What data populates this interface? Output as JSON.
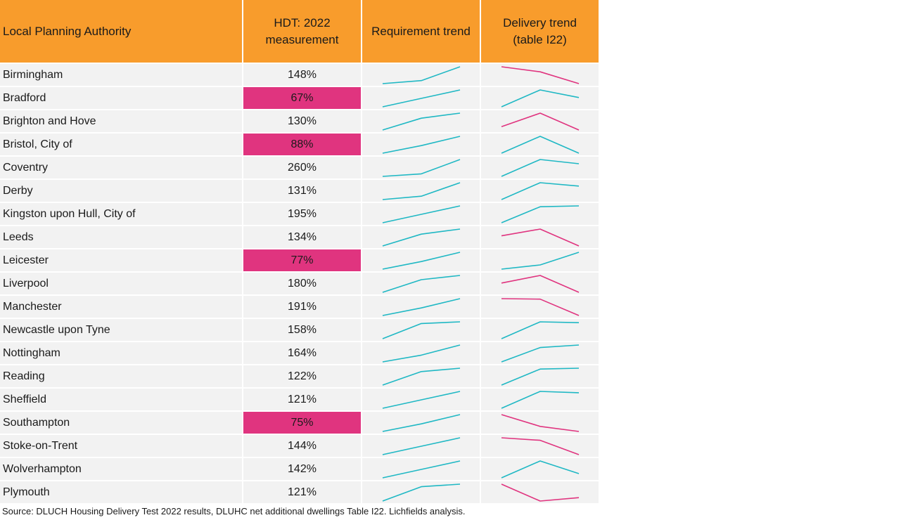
{
  "header": {
    "col_lpa": "Local Planning Authority",
    "col_hdt_line1": "HDT: 2022",
    "col_hdt_line2": "measurement",
    "col_req": "Requirement trend",
    "col_del_line1": "Delivery trend",
    "col_del_line2": "(table I22)"
  },
  "colors": {
    "header_bg": "#f89c2c",
    "fail_bg": "#e0347f",
    "row_bg": "#f2f2f2",
    "rising_line": "#1fb8c4",
    "falling_line": "#e0347f"
  },
  "chart_data": {
    "type": "table",
    "fail_threshold_percent": 95,
    "trend_points_note_free": true,
    "rows": [
      {
        "lpa": "Birmingham",
        "hdt": "148%",
        "hdt_value": 148,
        "requirement_trend": [
          0.0,
          0.18,
          1.0
        ],
        "delivery_trend": [
          1.0,
          0.7,
          0.0
        ]
      },
      {
        "lpa": "Bradford",
        "hdt": "67%",
        "hdt_value": 67,
        "requirement_trend": [
          0.0,
          0.5,
          1.0
        ],
        "delivery_trend": [
          0.0,
          1.0,
          0.55
        ]
      },
      {
        "lpa": "Brighton and Hove",
        "hdt": "130%",
        "hdt_value": 130,
        "requirement_trend": [
          0.0,
          0.7,
          1.0
        ],
        "delivery_trend": [
          0.2,
          1.0,
          0.0
        ]
      },
      {
        "lpa": "Bristol, City of",
        "hdt": "88%",
        "hdt_value": 88,
        "requirement_trend": [
          0.0,
          0.45,
          1.0
        ],
        "delivery_trend": [
          0.0,
          1.0,
          0.0
        ]
      },
      {
        "lpa": "Coventry",
        "hdt": "260%",
        "hdt_value": 260,
        "requirement_trend": [
          0.0,
          0.15,
          1.0
        ],
        "delivery_trend": [
          0.0,
          1.0,
          0.75
        ]
      },
      {
        "lpa": "Derby",
        "hdt": "131%",
        "hdt_value": 131,
        "requirement_trend": [
          0.0,
          0.2,
          1.0
        ],
        "delivery_trend": [
          0.0,
          1.0,
          0.8
        ]
      },
      {
        "lpa": "Kingston upon Hull, City of",
        "hdt": "195%",
        "hdt_value": 195,
        "requirement_trend": [
          0.0,
          0.5,
          1.0
        ],
        "delivery_trend": [
          0.0,
          0.95,
          1.0
        ]
      },
      {
        "lpa": "Leeds",
        "hdt": "134%",
        "hdt_value": 134,
        "requirement_trend": [
          0.0,
          0.7,
          1.0
        ],
        "delivery_trend": [
          0.6,
          1.0,
          0.0
        ]
      },
      {
        "lpa": "Leicester",
        "hdt": "77%",
        "hdt_value": 77,
        "requirement_trend": [
          0.0,
          0.45,
          1.0
        ],
        "delivery_trend": [
          0.0,
          0.25,
          1.0
        ]
      },
      {
        "lpa": "Liverpool",
        "hdt": "180%",
        "hdt_value": 180,
        "requirement_trend": [
          0.0,
          0.75,
          1.0
        ],
        "delivery_trend": [
          0.55,
          1.0,
          0.0
        ]
      },
      {
        "lpa": "Manchester",
        "hdt": "191%",
        "hdt_value": 191,
        "requirement_trend": [
          0.0,
          0.45,
          1.0
        ],
        "delivery_trend": [
          1.0,
          0.97,
          0.0
        ]
      },
      {
        "lpa": "Newcastle upon Tyne",
        "hdt": "158%",
        "hdt_value": 158,
        "requirement_trend": [
          0.0,
          0.9,
          1.0
        ],
        "delivery_trend": [
          0.0,
          1.0,
          0.95
        ]
      },
      {
        "lpa": "Nottingham",
        "hdt": "164%",
        "hdt_value": 164,
        "requirement_trend": [
          0.0,
          0.4,
          1.0
        ],
        "delivery_trend": [
          0.0,
          0.85,
          1.0
        ]
      },
      {
        "lpa": "Reading",
        "hdt": "122%",
        "hdt_value": 122,
        "requirement_trend": [
          0.0,
          0.8,
          1.0
        ],
        "delivery_trend": [
          0.0,
          0.95,
          1.0
        ]
      },
      {
        "lpa": "Sheffield",
        "hdt": "121%",
        "hdt_value": 121,
        "requirement_trend": [
          0.0,
          0.5,
          1.0
        ],
        "delivery_trend": [
          0.0,
          1.0,
          0.92
        ]
      },
      {
        "lpa": "Southampton",
        "hdt": "75%",
        "hdt_value": 75,
        "requirement_trend": [
          0.0,
          0.45,
          1.0
        ],
        "delivery_trend": [
          1.0,
          0.3,
          0.0
        ]
      },
      {
        "lpa": "Stoke-on-Trent",
        "hdt": "144%",
        "hdt_value": 144,
        "requirement_trend": [
          0.0,
          0.5,
          1.0
        ],
        "delivery_trend": [
          1.0,
          0.85,
          0.0
        ]
      },
      {
        "lpa": "Wolverhampton",
        "hdt": "142%",
        "hdt_value": 142,
        "requirement_trend": [
          0.0,
          0.5,
          1.0
        ],
        "delivery_trend": [
          0.0,
          1.0,
          0.25
        ]
      },
      {
        "lpa": "Plymouth",
        "hdt": "121%",
        "hdt_value": 121,
        "requirement_trend": [
          0.0,
          0.85,
          1.0
        ],
        "delivery_trend": [
          1.0,
          0.0,
          0.2
        ]
      }
    ]
  },
  "footer": {
    "source": "Source: DLUCH Housing Delivery Test 2022 results, DLUHC net additional dwellings Table I22. Lichfields analysis."
  }
}
